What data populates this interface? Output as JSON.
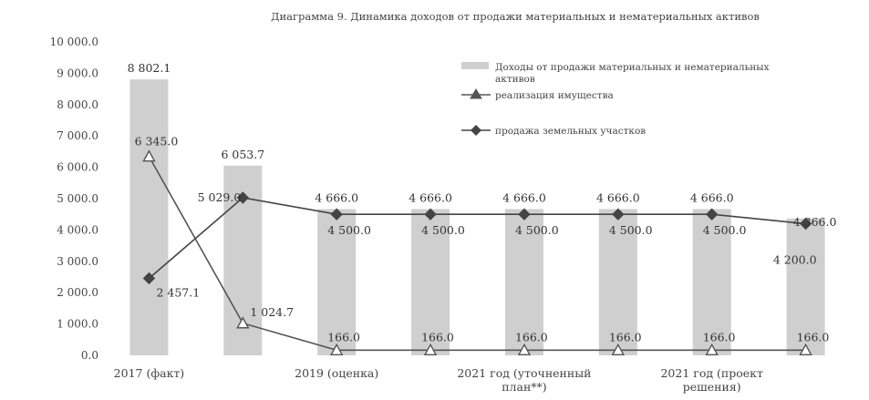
{
  "chart_data": {
    "type": "bar",
    "title": "Диаграмма 9. Динамика доходов от продажи материальных и нематериальных активов",
    "categories": [
      "2017 (факт)",
      "",
      "2019 (оценка)",
      "",
      "2021 год (уточненный план**)",
      "",
      "2021 год (проект решения)",
      ""
    ],
    "ylim": [
      0,
      10000
    ],
    "ytick_labels": [
      "0.0",
      "1 000.0",
      "2 000.0",
      "3 000.0",
      "4 000.0",
      "5 000.0",
      "6 000.0",
      "7 000.0",
      "8 000.0",
      "9 000.0",
      "10 000.0"
    ],
    "series": [
      {
        "name": "Доходы от продажи материальных и нематериальных активов",
        "kind": "bar",
        "color": "#cfcfcf",
        "values": [
          8802.1,
          6053.7,
          4666.0,
          4666.0,
          4666.0,
          4666.0,
          4666.0,
          4366.0
        ],
        "labels": [
          "8 802.1",
          "6 053.7",
          "4 666.0",
          "4 666.0",
          "4 666.0",
          "4 666.0",
          "4 666.0",
          "4 366.0"
        ]
      },
      {
        "name": "реализация имущества",
        "kind": "line",
        "marker": "triangle",
        "color": "#555555",
        "values": [
          6345.0,
          1024.7,
          166.0,
          166.0,
          166.0,
          166.0,
          166.0,
          166.0
        ],
        "labels": [
          "6 345.0",
          "1 024.7",
          "166.0",
          "166.0",
          "166.0",
          "166.0",
          "166.0",
          "166.0"
        ]
      },
      {
        "name": "продажа земельных участков",
        "kind": "line",
        "marker": "diamond",
        "color": "#444444",
        "values": [
          2457.1,
          5029.0,
          4500.0,
          4500.0,
          4500.0,
          4500.0,
          4500.0,
          4200.0
        ],
        "labels": [
          "2 457.1",
          "5 029.0",
          "4 500.0",
          "4 500.0",
          "4 500.0",
          "4 500.0",
          "4 500.0",
          "4 200.0"
        ]
      }
    ],
    "grid": false,
    "legend": "top-right"
  }
}
